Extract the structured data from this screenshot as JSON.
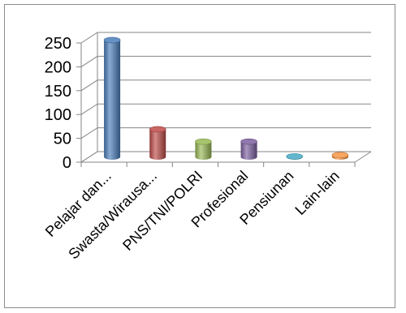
{
  "chart_data": {
    "type": "bar",
    "style": "3d-cylinder",
    "title": "",
    "xlabel": "",
    "ylabel": "",
    "categories": [
      "Pelajar dan...",
      "Swasta/Wirausa...",
      "PNS/TNI/POLRI",
      "Profesional",
      "Pensiunan",
      "Lain-lain"
    ],
    "values": [
      245,
      58,
      32,
      32,
      1,
      4
    ],
    "colors": [
      "#4a7ebb",
      "#be4b48",
      "#98b954",
      "#7d60a0",
      "#46aac5",
      "#f79646"
    ],
    "ylim": [
      0,
      250
    ],
    "yticks": [
      0,
      50,
      100,
      150,
      200,
      250
    ],
    "grid": true,
    "legend": "none"
  }
}
